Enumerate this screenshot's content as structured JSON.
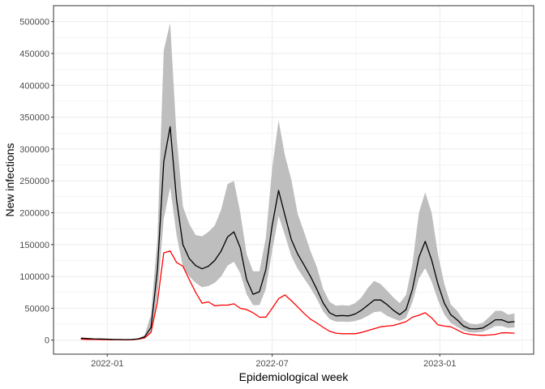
{
  "chart_data": {
    "type": "line",
    "title": "",
    "xlabel": "Epidemiological week",
    "ylabel": "New infections",
    "x_tick_labels": [
      "2022-01",
      "2022-07",
      "2023-01"
    ],
    "x_ticks": [
      "2022-01-01",
      "2022-07-01",
      "2023-01-01"
    ],
    "x_range": [
      "2021-11-03",
      "2023-04-14"
    ],
    "y_ticks": [
      0,
      50000,
      100000,
      150000,
      200000,
      250000,
      300000,
      350000,
      400000,
      450000,
      500000
    ],
    "y_tick_labels": [
      "0",
      "50000",
      "100000",
      "150000",
      "200000",
      "250000",
      "300000",
      "350000",
      "400000",
      "450000",
      "500000"
    ],
    "ylim": [
      -22000,
      525000
    ],
    "grid": true,
    "legend": "none",
    "x": [
      "2021-12-03",
      "2021-12-10",
      "2021-12-17",
      "2021-12-24",
      "2021-12-31",
      "2022-01-07",
      "2022-01-14",
      "2022-01-21",
      "2022-01-28",
      "2022-02-04",
      "2022-02-11",
      "2022-02-18",
      "2022-02-25",
      "2022-03-04",
      "2022-03-11",
      "2022-03-18",
      "2022-03-25",
      "2022-04-01",
      "2022-04-08",
      "2022-04-15",
      "2022-04-22",
      "2022-04-29",
      "2022-05-06",
      "2022-05-13",
      "2022-05-20",
      "2022-05-27",
      "2022-06-03",
      "2022-06-10",
      "2022-06-17",
      "2022-06-24",
      "2022-07-01",
      "2022-07-08",
      "2022-07-15",
      "2022-07-22",
      "2022-07-29",
      "2022-08-05",
      "2022-08-12",
      "2022-08-19",
      "2022-08-26",
      "2022-09-02",
      "2022-09-09",
      "2022-09-16",
      "2022-09-23",
      "2022-09-30",
      "2022-10-07",
      "2022-10-14",
      "2022-10-21",
      "2022-10-28",
      "2022-11-04",
      "2022-11-11",
      "2022-11-18",
      "2022-11-25",
      "2022-12-02",
      "2022-12-09",
      "2022-12-16",
      "2022-12-23",
      "2022-12-30",
      "2023-01-06",
      "2023-01-13",
      "2023-01-20",
      "2023-01-27",
      "2023-02-03",
      "2023-02-10",
      "2023-02-17",
      "2023-02-24",
      "2023-03-03",
      "2023-03-10",
      "2023-03-17",
      "2023-03-24"
    ],
    "series": [
      {
        "role": "estimate",
        "color": "#000000",
        "values": [
          3000,
          2500,
          2000,
          1800,
          1500,
          1200,
          1000,
          800,
          1000,
          2000,
          5000,
          20000,
          110000,
          280000,
          335000,
          220000,
          150000,
          128000,
          117000,
          112000,
          116000,
          125000,
          140000,
          162000,
          170000,
          145000,
          95000,
          72000,
          76000,
          110000,
          180000,
          235000,
          196000,
          158000,
          135000,
          118000,
          100000,
          80000,
          58000,
          43000,
          38000,
          38500,
          38000,
          41000,
          47000,
          55000,
          63000,
          63000,
          56000,
          47000,
          40000,
          48000,
          80000,
          130000,
          155000,
          126000,
          88000,
          58000,
          40000,
          32000,
          22000,
          18000,
          17500,
          19000,
          25000,
          32000,
          32000,
          28000,
          29000
        ]
      },
      {
        "role": "reported",
        "color": "#ff0000",
        "values": [
          1500,
          1200,
          1000,
          900,
          800,
          700,
          600,
          500,
          700,
          1500,
          3500,
          12000,
          60000,
          137000,
          140000,
          122000,
          116000,
          95000,
          75000,
          58000,
          60000,
          54000,
          55000,
          55000,
          57000,
          50000,
          48000,
          43000,
          36000,
          36000,
          50000,
          65000,
          71000,
          62000,
          52000,
          42000,
          33000,
          27000,
          20000,
          14000,
          11000,
          10000,
          10000,
          10000,
          12000,
          15000,
          18000,
          21000,
          22000,
          23000,
          26000,
          29000,
          36000,
          39000,
          43000,
          35000,
          24000,
          22000,
          21000,
          16000,
          11000,
          9000,
          8000,
          7500,
          8000,
          9000,
          11500,
          11500,
          11000
        ]
      }
    ],
    "uncertainty_band": {
      "color": "#bebebe",
      "lower": [
        3000,
        2500,
        2000,
        1800,
        1500,
        1200,
        1000,
        800,
        1000,
        2000,
        4000,
        12000,
        70000,
        190000,
        240000,
        165000,
        115000,
        100000,
        90000,
        83000,
        85000,
        90000,
        100000,
        117000,
        123000,
        105000,
        72000,
        55000,
        55000,
        80000,
        140000,
        195000,
        165000,
        132000,
        112000,
        97000,
        82000,
        65000,
        45000,
        33000,
        29000,
        29000,
        28500,
        30000,
        33000,
        38000,
        44000,
        45000,
        38000,
        34000,
        30000,
        35000,
        60000,
        97000,
        113000,
        92000,
        63000,
        40000,
        27000,
        21000,
        15000,
        12000,
        12000,
        13000,
        17000,
        22000,
        22000,
        19000,
        20000
      ],
      "upper": [
        3000,
        2500,
        2000,
        1800,
        1500,
        1200,
        1000,
        800,
        1000,
        2500,
        8000,
        40000,
        160000,
        455000,
        498000,
        320000,
        210000,
        182000,
        165000,
        163000,
        170000,
        180000,
        205000,
        245000,
        250000,
        200000,
        135000,
        108000,
        108000,
        160000,
        270000,
        345000,
        290000,
        252000,
        198000,
        170000,
        140000,
        115000,
        80000,
        60000,
        54000,
        55000,
        54000,
        58000,
        67000,
        82000,
        93000,
        88000,
        78000,
        67000,
        58000,
        71000,
        120000,
        200000,
        232000,
        200000,
        135000,
        88000,
        56000,
        46000,
        32000,
        26000,
        25000,
        27000,
        36000,
        46000,
        46000,
        40000,
        42000
      ]
    }
  }
}
